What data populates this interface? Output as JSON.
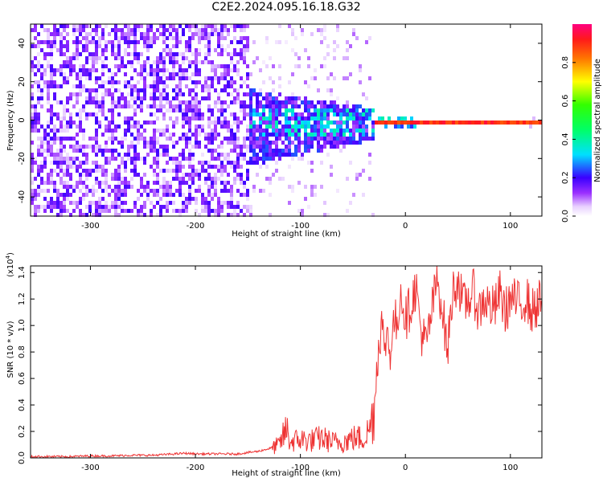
{
  "page_title": "C2E2.2024.095.16.18.G32",
  "chart_data": [
    {
      "type": "heatmap",
      "title": "C2E2.2024.095.16.18.G32",
      "xlabel": "Height of straight line (km)",
      "ylabel": "Frequency (Hz)",
      "xlim": [
        -357,
        130
      ],
      "ylim": [
        -50,
        50
      ],
      "xticks": [
        -300,
        -200,
        -100,
        0,
        100
      ],
      "xtick_labels": [
        "-300",
        "-200",
        "-100",
        "0",
        "100"
      ],
      "yticks": [
        -40,
        -20,
        0,
        20,
        40
      ],
      "ytick_labels": [
        "-40",
        "-20",
        "0",
        "20",
        "40"
      ],
      "colorbar": {
        "label": "Normalized spectral amplitude",
        "range": [
          0,
          1
        ],
        "ticks": [
          0.0,
          0.2,
          0.4,
          0.6,
          0.8
        ],
        "tick_labels": [
          "0.0",
          "0.2",
          "0.4",
          "0.6",
          "0.8"
        ]
      },
      "description_regions": [
        {
          "x_range": [
            -357,
            -150
          ],
          "freq_range": [
            -50,
            50
          ],
          "amplitude_range": [
            0.0,
            0.2
          ]
        },
        {
          "x_range": [
            -150,
            -30
          ],
          "freq_range": [
            -15,
            20
          ],
          "amplitude_range": [
            0.1,
            0.4
          ]
        },
        {
          "x_range": [
            -30,
            130
          ],
          "freq_range": [
            -1,
            1
          ],
          "amplitude_range": [
            0.8,
            1.0
          ]
        }
      ]
    },
    {
      "type": "line",
      "xlabel": "Height of straight line (km)",
      "ylabel": "SNR (10 * v/v)",
      "scale_label": "(x10",
      "scale_exp": "4",
      "scale_close": ")",
      "xlim": [
        -357,
        130
      ],
      "ylim": [
        0,
        1.45
      ],
      "xticks": [
        -300,
        -200,
        -100,
        0,
        100
      ],
      "xtick_labels": [
        "-300",
        "-200",
        "-100",
        "0",
        "100"
      ],
      "yticks": [
        0.0,
        0.2,
        0.4,
        0.6,
        0.8,
        1.0,
        1.2,
        1.4
      ],
      "ytick_labels": [
        "0.0",
        "0.2",
        "0.4",
        "0.6",
        "0.8",
        "1.0",
        "1.2",
        "1.4"
      ],
      "color": "#ee3333",
      "series": [
        {
          "name": "SNR",
          "x": [
            -357,
            -340,
            -320,
            -300,
            -280,
            -260,
            -240,
            -220,
            -210,
            -200,
            -180,
            -160,
            -140,
            -130,
            -120,
            -113,
            -110,
            -100,
            -90,
            -80,
            -70,
            -60,
            -50,
            -40,
            -35,
            -30,
            -28,
            -25,
            -22,
            -20,
            -18,
            -15,
            -12,
            -10,
            -8,
            -5,
            0,
            5,
            10,
            15,
            20,
            25,
            30,
            35,
            40,
            45,
            50,
            55,
            60,
            65,
            70,
            75,
            80,
            85,
            90,
            95,
            100,
            105,
            110,
            115,
            120,
            125,
            130
          ],
          "y": [
            0.01,
            0.01,
            0.01,
            0.015,
            0.015,
            0.02,
            0.02,
            0.03,
            0.035,
            0.03,
            0.03,
            0.03,
            0.05,
            0.07,
            0.1,
            0.22,
            0.12,
            0.14,
            0.13,
            0.15,
            0.12,
            0.12,
            0.15,
            0.15,
            0.2,
            0.35,
            0.6,
            0.9,
            1.05,
            0.7,
            1.0,
            0.8,
            0.95,
            1.1,
            0.9,
            1.3,
            1.05,
            1.15,
            1.3,
            0.95,
            0.85,
            1.1,
            1.35,
            1.15,
            0.8,
            1.25,
            1.35,
            1.15,
            1.2,
            1.25,
            1.1,
            1.2,
            1.15,
            1.12,
            1.25,
            1.1,
            1.2,
            1.18,
            1.15,
            1.22,
            1.1,
            1.15,
            1.2
          ]
        }
      ]
    }
  ]
}
